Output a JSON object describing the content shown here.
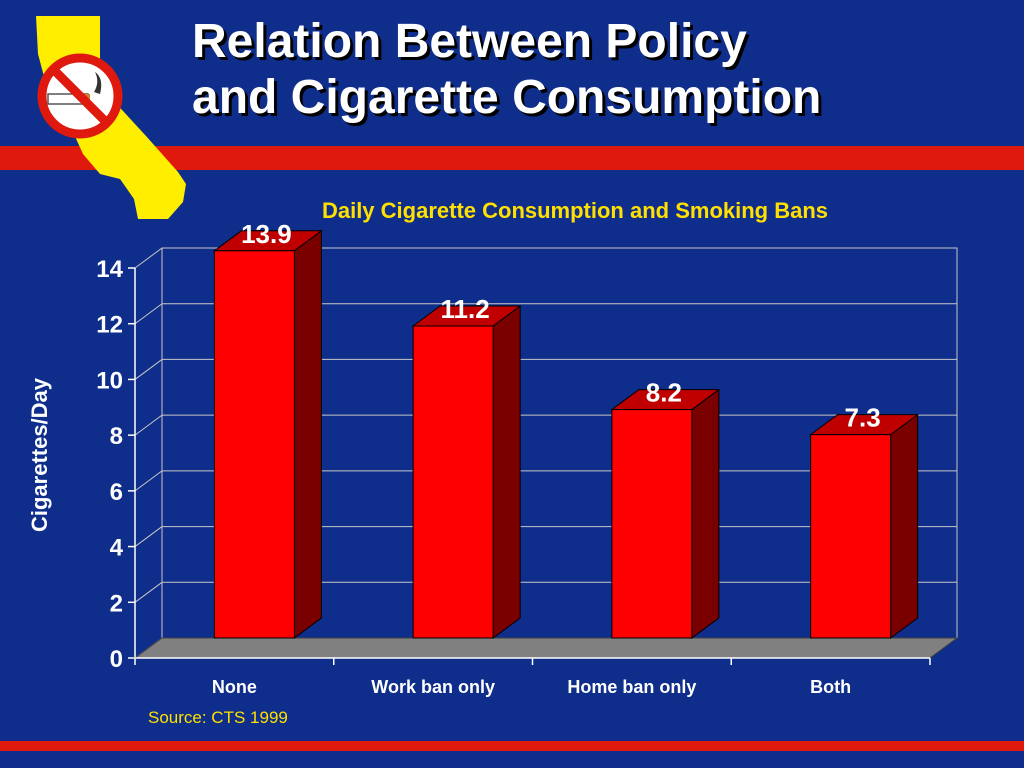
{
  "slide": {
    "title_line1": "Relation Between Policy",
    "title_line2": "and Cigarette Consumption",
    "source": "Source: CTS 1999",
    "logo_icon": "california-no-smoking-icon"
  },
  "colors": {
    "background": "#0f2d8a",
    "accent_red": "#e0190f",
    "bar_front": "#ff0000",
    "bar_side": "#7a0000",
    "chart_title": "#ffe000",
    "logo_yellow": "#ffee00"
  },
  "chart_data": {
    "type": "bar",
    "title": "Daily Cigarette Consumption and Smoking Bans",
    "xlabel": "",
    "ylabel": "Cigarettes/Day",
    "categories": [
      "None",
      "Work ban only",
      "Home ban only",
      "Both"
    ],
    "values": [
      13.9,
      11.2,
      8.2,
      7.3
    ],
    "data_labels": [
      "13.9",
      "11.2",
      "8.2",
      "7.3"
    ],
    "yticks": [
      "0",
      "2",
      "4",
      "6",
      "8",
      "10",
      "12",
      "14"
    ],
    "ylim": [
      0,
      14
    ],
    "grid": true,
    "legend": "none",
    "style": "3d"
  }
}
